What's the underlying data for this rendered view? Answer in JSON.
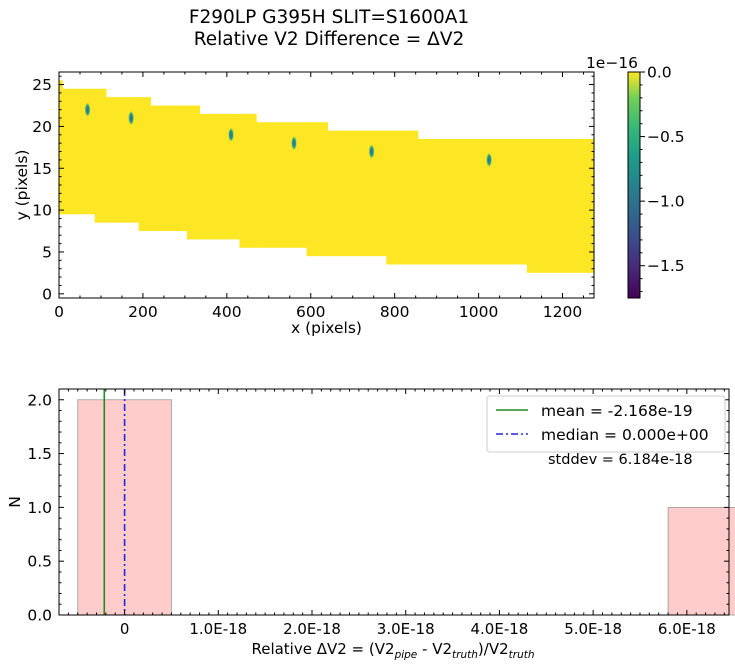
{
  "title": {
    "line1": "F290LP   G395H   SLIT=S1600A1",
    "line2": "Relative V2 Difference = ΔV2"
  },
  "chart_data": [
    {
      "type": "heatmap",
      "xlabel": "x (pixels)",
      "ylabel": "y (pixels)",
      "xlim": [
        0,
        1275
      ],
      "ylim": [
        -0.5,
        26.5
      ],
      "xticks": [
        0,
        200,
        400,
        600,
        800,
        1000,
        1200
      ],
      "yticks": [
        0,
        5,
        10,
        15,
        20,
        25
      ],
      "fill_color": "#fde725",
      "bands": [
        {
          "x0": 0,
          "x1": 8,
          "y0": 10,
          "y1": 25
        },
        {
          "x0": 8,
          "x1": 85,
          "y0": 10,
          "y1": 24
        },
        {
          "x0": 85,
          "x1": 112,
          "y0": 9,
          "y1": 24
        },
        {
          "x0": 112,
          "x1": 190,
          "y0": 9,
          "y1": 23
        },
        {
          "x0": 190,
          "x1": 218,
          "y0": 8,
          "y1": 23
        },
        {
          "x0": 218,
          "x1": 305,
          "y0": 8,
          "y1": 22
        },
        {
          "x0": 305,
          "x1": 335,
          "y0": 7,
          "y1": 22
        },
        {
          "x0": 335,
          "x1": 430,
          "y0": 7,
          "y1": 21
        },
        {
          "x0": 430,
          "x1": 470,
          "y0": 6,
          "y1": 21
        },
        {
          "x0": 470,
          "x1": 590,
          "y0": 6,
          "y1": 20
        },
        {
          "x0": 590,
          "x1": 640,
          "y0": 5,
          "y1": 20
        },
        {
          "x0": 640,
          "x1": 780,
          "y0": 5,
          "y1": 19
        },
        {
          "x0": 780,
          "x1": 855,
          "y0": 4,
          "y1": 19
        },
        {
          "x0": 855,
          "x1": 1115,
          "y0": 4,
          "y1": 18
        },
        {
          "x0": 1115,
          "x1": 1275,
          "y0": 3,
          "y1": 18
        }
      ],
      "spots": [
        {
          "x": 68,
          "y": 22
        },
        {
          "x": 172,
          "y": 21
        },
        {
          "x": 410,
          "y": 19
        },
        {
          "x": 560,
          "y": 18
        },
        {
          "x": 745,
          "y": 17
        },
        {
          "x": 1025,
          "y": 16
        }
      ],
      "colorbar": {
        "min": -1.75,
        "max": 0.0,
        "ticks": [
          0.0,
          -0.5,
          -1.0,
          -1.5
        ],
        "tick_labels": [
          "0.0",
          "−0.5",
          "−1.0",
          "−1.5"
        ],
        "offset_label": "1e−16",
        "colormap": "viridis"
      }
    },
    {
      "type": "bar",
      "xlabel_parts": {
        "prefix": "Relative ΔV2 = (V2",
        "sub1": "pipe",
        "mid": " - V2",
        "sub2": "truth",
        "mid2": ")/V2",
        "sub3": "truth"
      },
      "ylabel": "N",
      "xlim": [
        -7e-19,
        6.45e-18
      ],
      "ylim": [
        0,
        2.1
      ],
      "xticks": [
        0,
        1e-18,
        2e-18,
        3e-18,
        4e-18,
        5e-18,
        6e-18
      ],
      "xtick_labels": [
        "0",
        "1.0E-18",
        "2.0E-18",
        "3.0E-18",
        "4.0E-18",
        "5.0E-18",
        "6.0E-18"
      ],
      "yticks": [
        0.0,
        0.5,
        1.0,
        1.5,
        2.0
      ],
      "ytick_labels": [
        "0.0",
        "0.5",
        "1.0",
        "1.5",
        "2.0"
      ],
      "bins": [
        {
          "x0": -5e-19,
          "x1": 5e-19,
          "count": 2
        },
        {
          "x0": 5.8e-18,
          "x1": 6.8e-18,
          "count": 1
        }
      ],
      "bar_color": "#ffcccc",
      "mean": -2.168e-19,
      "median": 0.0,
      "legend": {
        "position": "top-right",
        "mean_label": "mean = -2.168e-19",
        "median_label": "median = 0.000e+00",
        "stddev_label": "stddev = 6.184e-18"
      },
      "mean_color": "#228b22",
      "median_color": "#2626e0"
    }
  ]
}
